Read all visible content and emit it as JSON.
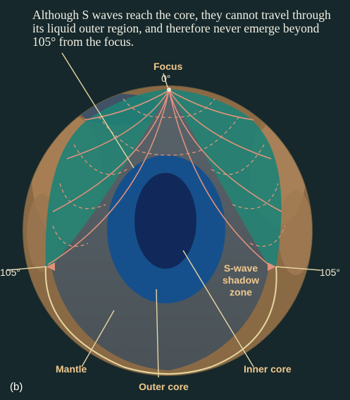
{
  "caption": "Although S waves reach the core, they cannot travel through its liquid outer region, and therefore never emerge beyond 105° from the focus.",
  "labels": {
    "focus": "Focus",
    "focus_angle": "0°",
    "left_angle": "105°",
    "right_angle": "105°",
    "shadow_zone": "S-wave shadow zone",
    "mantle": "Mantle",
    "outer_core": "Outer core",
    "inner_core": "Inner core",
    "panel": "(b)"
  },
  "colors": {
    "background": "#16282b",
    "mantle_rim": "#c8a875",
    "wave_region": "#1e8275",
    "shadow_zone": "#515a60",
    "outer_core": "#16508c",
    "inner_core": "#10295a",
    "ray_color": "#e0927c",
    "label_color": "#f0c88e"
  }
}
